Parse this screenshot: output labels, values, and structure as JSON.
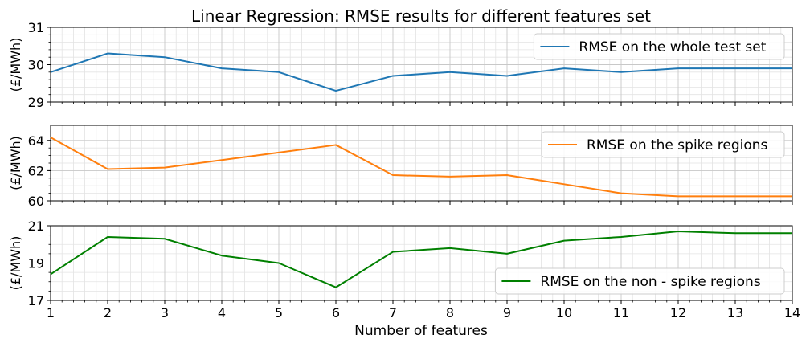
{
  "chart_data": {
    "type": "line",
    "title": "Linear Regression: RMSE results for different features set",
    "xlabel": "Number of features",
    "x": [
      1,
      2,
      3,
      4,
      5,
      6,
      7,
      8,
      9,
      10,
      11,
      12,
      13,
      14
    ],
    "xticks": [
      "1",
      "2",
      "3",
      "4",
      "5",
      "6",
      "7",
      "8",
      "9",
      "10",
      "11",
      "12",
      "13",
      "14"
    ],
    "xlim": [
      1,
      14
    ],
    "grid": true,
    "panels": [
      {
        "ylabel": "(£/MWh)",
        "ylim": [
          29,
          31
        ],
        "yticks": [
          "29",
          "30",
          "31"
        ],
        "yticks_values": [
          29,
          30,
          31
        ],
        "legend_position": "top-right",
        "series": [
          {
            "name": "RMSE on the whole test set",
            "color": "#1f77b4",
            "values": [
              29.8,
              30.3,
              30.2,
              29.9,
              29.8,
              29.3,
              29.7,
              29.8,
              29.7,
              29.9,
              29.8,
              29.9,
              29.9,
              29.9
            ]
          }
        ]
      },
      {
        "ylabel": "(£/MWh)",
        "ylim": [
          60,
          65
        ],
        "yticks": [
          "60",
          "62",
          "64"
        ],
        "yticks_values": [
          60,
          62,
          64
        ],
        "legend_position": "top-right",
        "series": [
          {
            "name": "RMSE on the spike regions",
            "color": "#ff7f0e",
            "values": [
              64.2,
              62.1,
              62.2,
              62.7,
              63.2,
              63.7,
              61.7,
              61.6,
              61.7,
              61.1,
              60.5,
              60.3,
              60.3,
              60.3
            ]
          }
        ]
      },
      {
        "ylabel": "(£/MWh)",
        "ylim": [
          17,
          21
        ],
        "yticks": [
          "17",
          "19",
          "21"
        ],
        "yticks_values": [
          17,
          19,
          21
        ],
        "legend_position": "bottom-right",
        "series": [
          {
            "name": "RMSE on the non - spike regions",
            "color": "#008000",
            "values": [
              18.4,
              20.4,
              20.3,
              19.4,
              19.0,
              17.7,
              19.6,
              19.8,
              19.5,
              20.2,
              20.4,
              20.7,
              20.6,
              20.6
            ]
          }
        ]
      }
    ]
  }
}
